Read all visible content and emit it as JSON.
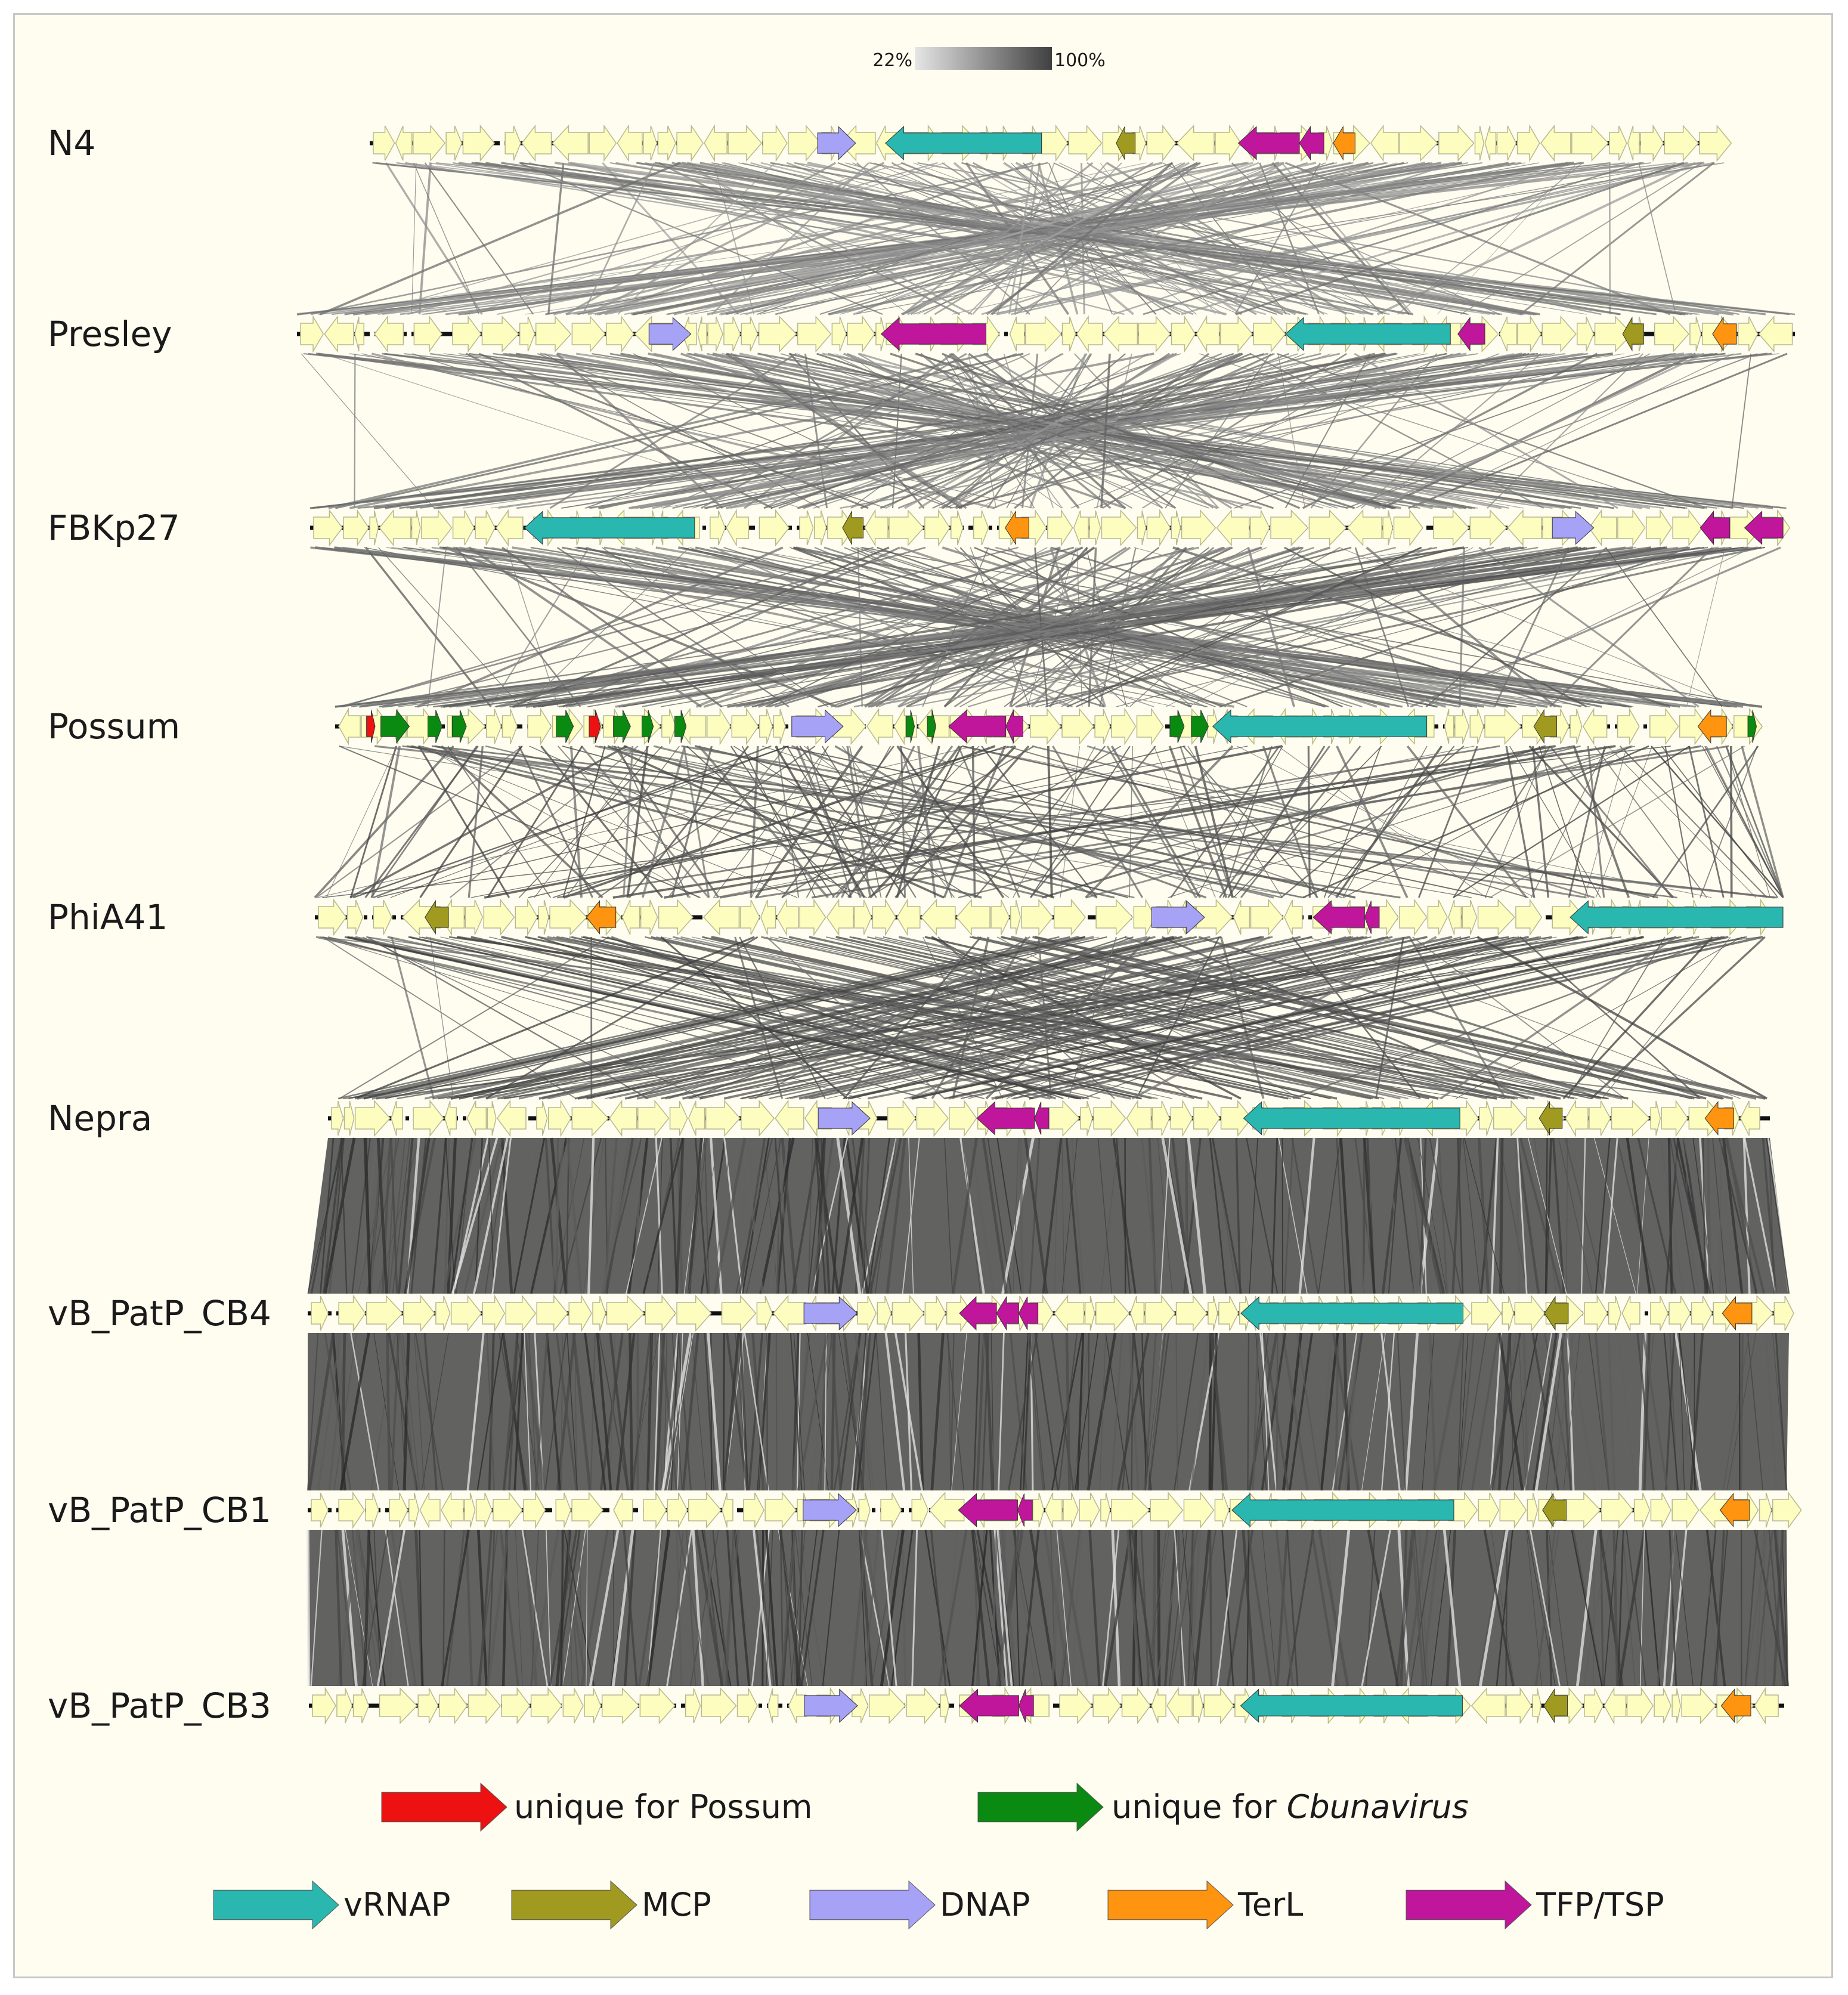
{
  "scale": {
    "min_label": "22%",
    "max_label": "100%"
  },
  "genomes": [
    {
      "name": "N4",
      "ranges": [
        0.2,
        0.94
      ],
      "features": [
        {
          "t": "DNAP",
          "p": 0.33,
          "w": 0.028,
          "d": 1
        },
        {
          "t": "vRNAP",
          "p": 0.38,
          "w": 0.115,
          "d": -1
        },
        {
          "t": "MCP",
          "p": 0.55,
          "w": 0.014,
          "d": -1
        },
        {
          "t": "TFP/TSP",
          "p": 0.64,
          "w": 0.045,
          "d": -1
        },
        {
          "t": "TFP/TSP",
          "p": 0.685,
          "w": 0.018,
          "d": -1
        },
        {
          "t": "TerL",
          "p": 0.71,
          "w": 0.016,
          "d": -1
        }
      ]
    },
    {
      "name": "Presley",
      "ranges": [
        0.16,
        0.98
      ],
      "features": [
        {
          "t": "DNAP",
          "p": 0.235,
          "w": 0.028,
          "d": 1
        },
        {
          "t": "TFP/TSP",
          "p": 0.39,
          "w": 0.07,
          "d": -1
        },
        {
          "t": "vRNAP",
          "p": 0.66,
          "w": 0.11,
          "d": -1
        },
        {
          "t": "TFP/TSP",
          "p": 0.775,
          "w": 0.018,
          "d": -1
        },
        {
          "t": "MCP",
          "p": 0.885,
          "w": 0.014,
          "d": -1
        },
        {
          "t": "TerL",
          "p": 0.945,
          "w": 0.016,
          "d": -1
        }
      ]
    },
    {
      "name": "FBKp27",
      "ranges": [
        0.17,
        0.98
      ],
      "features": [
        {
          "t": "vRNAP",
          "p": 0.145,
          "w": 0.115,
          "d": -1
        },
        {
          "t": "MCP",
          "p": 0.36,
          "w": 0.014,
          "d": -1
        },
        {
          "t": "TerL",
          "p": 0.47,
          "w": 0.016,
          "d": -1
        },
        {
          "t": "DNAP",
          "p": 0.84,
          "w": 0.028,
          "d": 1
        },
        {
          "t": "TFP/TSP",
          "p": 0.94,
          "w": 0.02,
          "d": -1
        },
        {
          "t": "TFP/TSP",
          "p": 0.97,
          "w": 0.026,
          "d": -1
        }
      ]
    },
    {
      "name": "Possum",
      "ranges": [
        0.18,
        0.96
      ],
      "features": [
        {
          "t": "unique_possum",
          "p": 0.022,
          "w": 0.006,
          "d": 1
        },
        {
          "t": "unique_cbuna",
          "p": 0.032,
          "w": 0.02,
          "d": 1
        },
        {
          "t": "unique_cbuna",
          "p": 0.065,
          "w": 0.01,
          "d": 1
        },
        {
          "t": "unique_cbuna",
          "p": 0.082,
          "w": 0.01,
          "d": 1
        },
        {
          "t": "unique_cbuna",
          "p": 0.155,
          "w": 0.012,
          "d": 1
        },
        {
          "t": "unique_possum",
          "p": 0.178,
          "w": 0.008,
          "d": 1
        },
        {
          "t": "unique_cbuna",
          "p": 0.195,
          "w": 0.012,
          "d": 1
        },
        {
          "t": "unique_cbuna",
          "p": 0.215,
          "w": 0.008,
          "d": 1
        },
        {
          "t": "unique_cbuna",
          "p": 0.238,
          "w": 0.008,
          "d": 1
        },
        {
          "t": "DNAP",
          "p": 0.32,
          "w": 0.036,
          "d": 1
        },
        {
          "t": "unique_cbuna",
          "p": 0.4,
          "w": 0.006,
          "d": 1
        },
        {
          "t": "unique_cbuna",
          "p": 0.415,
          "w": 0.006,
          "d": 1
        },
        {
          "t": "TFP/TSP",
          "p": 0.43,
          "w": 0.04,
          "d": -1
        },
        {
          "t": "TFP/TSP",
          "p": 0.47,
          "w": 0.012,
          "d": -1
        },
        {
          "t": "unique_cbuna",
          "p": 0.585,
          "w": 0.01,
          "d": 1
        },
        {
          "t": "unique_cbuna",
          "p": 0.6,
          "w": 0.012,
          "d": 1
        },
        {
          "t": "vRNAP",
          "p": 0.615,
          "w": 0.15,
          "d": -1
        },
        {
          "t": "MCP",
          "p": 0.84,
          "w": 0.016,
          "d": -1
        },
        {
          "t": "TerL",
          "p": 0.955,
          "w": 0.02,
          "d": -1
        },
        {
          "t": "unique_cbuna",
          "p": 0.99,
          "w": 0.006,
          "d": 1
        }
      ]
    },
    {
      "name": "PhiA41",
      "ranges": [
        0.17,
        0.97
      ],
      "features": [
        {
          "t": "MCP",
          "p": 0.075,
          "w": 0.016,
          "d": -1
        },
        {
          "t": "TerL",
          "p": 0.185,
          "w": 0.02,
          "d": -1
        },
        {
          "t": "DNAP",
          "p": 0.57,
          "w": 0.036,
          "d": 1
        },
        {
          "t": "TFP/TSP",
          "p": 0.68,
          "w": 0.035,
          "d": -1
        },
        {
          "t": "TFP/TSP",
          "p": 0.715,
          "w": 0.01,
          "d": -1
        },
        {
          "t": "vRNAP",
          "p": 0.855,
          "w": 0.145,
          "d": -1
        }
      ]
    },
    {
      "name": "Nepra",
      "ranges": [
        0.18,
        0.96
      ],
      "features": [
        {
          "t": "DNAP",
          "p": 0.34,
          "w": 0.036,
          "d": 1
        },
        {
          "t": "TFP/TSP",
          "p": 0.45,
          "w": 0.04,
          "d": -1
        },
        {
          "t": "TFP/TSP",
          "p": 0.49,
          "w": 0.01,
          "d": -1
        },
        {
          "t": "vRNAP",
          "p": 0.635,
          "w": 0.15,
          "d": -1
        },
        {
          "t": "MCP",
          "p": 0.84,
          "w": 0.016,
          "d": -1
        },
        {
          "t": "TerL",
          "p": 0.955,
          "w": 0.02,
          "d": -1
        }
      ]
    },
    {
      "name": "vB_PatP_CB4",
      "ranges": [
        0.16,
        0.98
      ],
      "features": [
        {
          "t": "DNAP",
          "p": 0.335,
          "w": 0.036,
          "d": 1
        },
        {
          "t": "TFP/TSP",
          "p": 0.44,
          "w": 0.025,
          "d": -1
        },
        {
          "t": "TFP/TSP",
          "p": 0.465,
          "w": 0.015,
          "d": -1
        },
        {
          "t": "TFP/TSP",
          "p": 0.48,
          "w": 0.013,
          "d": -1
        },
        {
          "t": "vRNAP",
          "p": 0.63,
          "w": 0.15,
          "d": -1
        },
        {
          "t": "MCP",
          "p": 0.835,
          "w": 0.016,
          "d": -1
        },
        {
          "t": "TerL",
          "p": 0.955,
          "w": 0.02,
          "d": -1
        }
      ]
    },
    {
      "name": "vB_PatP_CB1",
      "ranges": [
        0.16,
        0.98
      ],
      "features": [
        {
          "t": "DNAP",
          "p": 0.335,
          "w": 0.036,
          "d": 1
        },
        {
          "t": "TFP/TSP",
          "p": 0.44,
          "w": 0.04,
          "d": -1
        },
        {
          "t": "TFP/TSP",
          "p": 0.48,
          "w": 0.01,
          "d": -1
        },
        {
          "t": "vRNAP",
          "p": 0.625,
          "w": 0.15,
          "d": -1
        },
        {
          "t": "MCP",
          "p": 0.835,
          "w": 0.016,
          "d": -1
        },
        {
          "t": "TerL",
          "p": 0.955,
          "w": 0.02,
          "d": -1
        }
      ]
    },
    {
      "name": "vB_PatP_CB3",
      "ranges": [
        0.16,
        0.98
      ],
      "features": [
        {
          "t": "DNAP",
          "p": 0.335,
          "w": 0.036,
          "d": 1
        },
        {
          "t": "TFP/TSP",
          "p": 0.44,
          "w": 0.04,
          "d": -1
        },
        {
          "t": "TFP/TSP",
          "p": 0.48,
          "w": 0.01,
          "d": -1
        },
        {
          "t": "vRNAP",
          "p": 0.63,
          "w": 0.15,
          "d": -1
        },
        {
          "t": "MCP",
          "p": 0.835,
          "w": 0.016,
          "d": -1
        },
        {
          "t": "TerL",
          "p": 0.955,
          "w": 0.02,
          "d": -1
        }
      ]
    }
  ],
  "legend": {
    "row1": [
      {
        "key": "unique_possum",
        "label_plain": "unique for Possum",
        "label_italic": "",
        "color": "#ee1111"
      },
      {
        "key": "unique_cbuna",
        "label_plain": "unique for ",
        "label_italic": "Cbunavirus",
        "color": "#0a8a10"
      }
    ],
    "row2": [
      {
        "key": "vRNAP",
        "label": "vRNAP",
        "color": "#2ab7b0"
      },
      {
        "key": "MCP",
        "label": "MCP",
        "color": "#a09a20"
      },
      {
        "key": "DNAP",
        "label": "DNAP",
        "color": "#a6a2f6"
      },
      {
        "key": "TerL",
        "label": "TerL",
        "color": "#ff9410"
      },
      {
        "key": "TFP/TSP",
        "label": "TFP/TSP",
        "color": "#c0169c"
      }
    ]
  },
  "colors": {
    "other_gene": "#fdfdc0",
    "other_gene_stroke": "#b8b890",
    "backbone": "#111111",
    "background": "#fefdf0",
    "vRNAP": "#2ab7b0",
    "MCP": "#a09a20",
    "DNAP": "#a6a2f6",
    "TerL": "#ff9410",
    "TFP/TSP": "#c0169c",
    "unique_possum": "#ee1111",
    "unique_cbuna": "#0a8a10"
  },
  "synteny_identity_between_pairs": [
    0.45,
    0.55,
    0.65,
    0.8,
    0.8,
    0.92,
    0.95,
    0.95
  ]
}
